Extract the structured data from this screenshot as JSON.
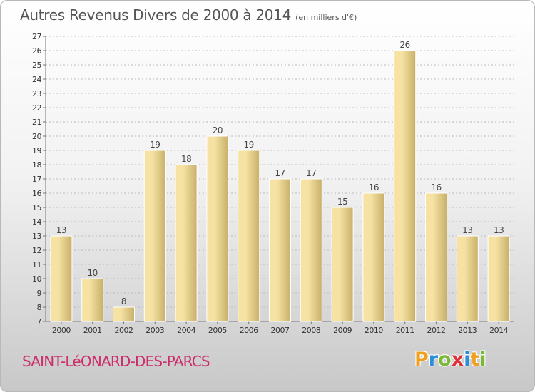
{
  "title": "Autres Revenus Divers de 2000 à 2014",
  "subtitle": "(en milliers d'€)",
  "place": "SAINT-LéONARD-DES-PARCS",
  "logo": {
    "letters": [
      "P",
      "r",
      "o",
      "x",
      "i",
      "t",
      "i"
    ],
    "colors": [
      "#f0a020",
      "#2a8fd8",
      "#7ab83a",
      "#e0303a",
      "#2a8fd8",
      "#f0a020",
      "#7ab83a"
    ]
  },
  "colors": {
    "bar_light": "#f6e3a4",
    "bar_dark": "#c8b06a",
    "grid": "#bbbbbb"
  },
  "chart_data": {
    "type": "bar",
    "categories": [
      "2000",
      "2001",
      "2002",
      "2003",
      "2004",
      "2005",
      "2006",
      "2007",
      "2008",
      "2009",
      "2010",
      "2011",
      "2012",
      "2013",
      "2014"
    ],
    "values": [
      13,
      10,
      8,
      19,
      18,
      20,
      19,
      17,
      17,
      15,
      16,
      26,
      16,
      13,
      13
    ],
    "ylim": [
      7,
      27
    ],
    "yticks": [
      7,
      8,
      9,
      10,
      11,
      12,
      13,
      14,
      15,
      16,
      17,
      18,
      19,
      20,
      21,
      22,
      23,
      24,
      25,
      26,
      27
    ],
    "grid": true
  }
}
